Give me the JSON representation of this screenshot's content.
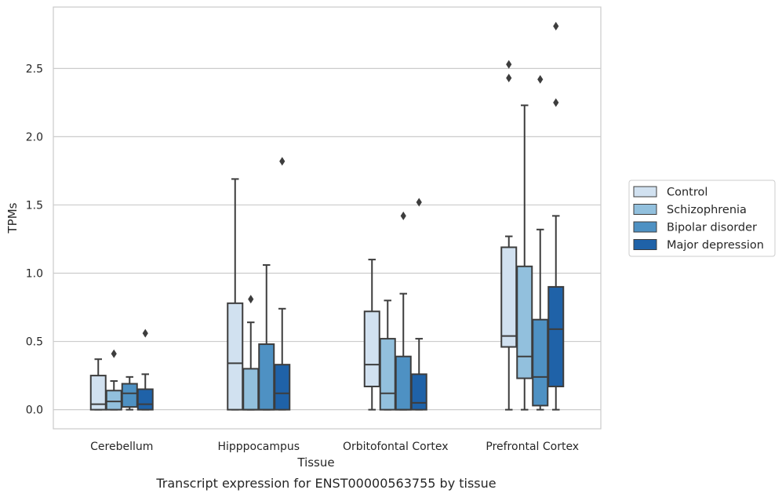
{
  "caption": "Transcript expression for ENST00000563755 by tissue",
  "chart_data": {
    "type": "box",
    "title": "",
    "xlabel": "Tissue",
    "ylabel": "TPMs",
    "ylim": [
      -0.14,
      2.95
    ],
    "yticks": [
      "0.0",
      "0.5",
      "1.0",
      "1.5",
      "2.0",
      "2.5"
    ],
    "grid": "horizontal",
    "legend_position": "right",
    "categories": [
      "Cerebellum",
      "Hipppocampus",
      "Orbitofontal Cortex",
      "Prefrontal Cortex"
    ],
    "series": [
      {
        "name": "Control",
        "color": "#d1e1f0",
        "boxes": [
          {
            "q1": 0.0,
            "median": 0.04,
            "q3": 0.25,
            "whisker_low": 0.0,
            "whisker_high": 0.37,
            "outliers": []
          },
          {
            "q1": 0.0,
            "median": 0.34,
            "q3": 0.78,
            "whisker_low": 0.0,
            "whisker_high": 1.69,
            "outliers": []
          },
          {
            "q1": 0.17,
            "median": 0.33,
            "q3": 0.72,
            "whisker_low": 0.0,
            "whisker_high": 1.1,
            "outliers": []
          },
          {
            "q1": 0.46,
            "median": 0.54,
            "q3": 1.19,
            "whisker_low": 0.0,
            "whisker_high": 1.27,
            "outliers": [
              2.43,
              2.53
            ]
          }
        ]
      },
      {
        "name": "Schizophrenia",
        "color": "#92c0dd",
        "boxes": [
          {
            "q1": 0.0,
            "median": 0.06,
            "q3": 0.14,
            "whisker_low": 0.0,
            "whisker_high": 0.21,
            "outliers": [
              0.41
            ]
          },
          {
            "q1": 0.0,
            "median": 0.0,
            "q3": 0.3,
            "whisker_low": 0.0,
            "whisker_high": 0.64,
            "outliers": [
              0.81
            ]
          },
          {
            "q1": 0.0,
            "median": 0.12,
            "q3": 0.52,
            "whisker_low": 0.0,
            "whisker_high": 0.8,
            "outliers": []
          },
          {
            "q1": 0.23,
            "median": 0.39,
            "q3": 1.05,
            "whisker_low": 0.0,
            "whisker_high": 2.23,
            "outliers": []
          }
        ]
      },
      {
        "name": "Bipolar disorder",
        "color": "#4e91c3",
        "boxes": [
          {
            "q1": 0.02,
            "median": 0.12,
            "q3": 0.19,
            "whisker_low": 0.0,
            "whisker_high": 0.24,
            "outliers": []
          },
          {
            "q1": 0.0,
            "median": 0.0,
            "q3": 0.48,
            "whisker_low": 0.0,
            "whisker_high": 1.06,
            "outliers": []
          },
          {
            "q1": 0.0,
            "median": 0.0,
            "q3": 0.39,
            "whisker_low": 0.0,
            "whisker_high": 0.85,
            "outliers": [
              1.42
            ]
          },
          {
            "q1": 0.03,
            "median": 0.24,
            "q3": 0.66,
            "whisker_low": 0.0,
            "whisker_high": 1.32,
            "outliers": [
              2.42
            ]
          }
        ]
      },
      {
        "name": "Major depression",
        "color": "#1f62a8",
        "boxes": [
          {
            "q1": 0.0,
            "median": 0.04,
            "q3": 0.15,
            "whisker_low": 0.0,
            "whisker_high": 0.26,
            "outliers": [
              0.56
            ]
          },
          {
            "q1": 0.0,
            "median": 0.12,
            "q3": 0.33,
            "whisker_low": 0.0,
            "whisker_high": 0.74,
            "outliers": [
              1.82
            ]
          },
          {
            "q1": 0.0,
            "median": 0.05,
            "q3": 0.26,
            "whisker_low": 0.0,
            "whisker_high": 0.52,
            "outliers": [
              1.52
            ]
          },
          {
            "q1": 0.17,
            "median": 0.59,
            "q3": 0.9,
            "whisker_low": 0.0,
            "whisker_high": 1.42,
            "outliers": [
              2.25,
              2.81
            ]
          }
        ]
      }
    ]
  }
}
